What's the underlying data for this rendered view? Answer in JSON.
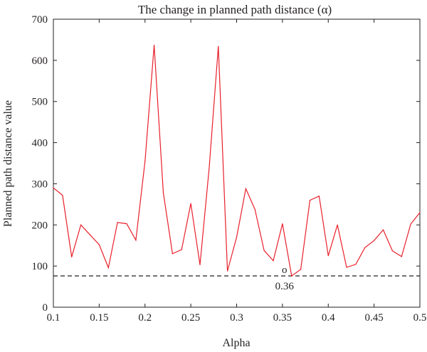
{
  "chart_data": {
    "type": "line",
    "title": "The change in planned path distance (α)",
    "xlabel": "Alpha",
    "ylabel": "Planned path distance value",
    "xlim": [
      0.1,
      0.5
    ],
    "ylim": [
      0,
      700
    ],
    "x_ticks": [
      "0.1",
      "0.15",
      "0.2",
      "0.25",
      "0.3",
      "0.35",
      "0.4",
      "0.45",
      "0.5"
    ],
    "y_ticks": [
      "0",
      "100",
      "200",
      "300",
      "400",
      "500",
      "600",
      "700"
    ],
    "grid": false,
    "series": [
      {
        "color": "#e8202a",
        "x": [
          0.1,
          0.11,
          0.12,
          0.13,
          0.14,
          0.15,
          0.16,
          0.17,
          0.18,
          0.19,
          0.2,
          0.21,
          0.22,
          0.23,
          0.24,
          0.25,
          0.26,
          0.27,
          0.28,
          0.29,
          0.3,
          0.31,
          0.32,
          0.33,
          0.34,
          0.35,
          0.36,
          0.37,
          0.38,
          0.39,
          0.4,
          0.41,
          0.42,
          0.43,
          0.44,
          0.45,
          0.46,
          0.47,
          0.48,
          0.49,
          0.5
        ],
        "y": [
          290,
          272,
          122,
          200,
          176,
          152,
          96,
          206,
          203,
          163,
          355,
          637,
          278,
          130,
          140,
          252,
          103,
          338,
          634,
          88,
          170,
          288,
          238,
          138,
          113,
          203,
          76,
          92,
          260,
          270,
          125,
          200,
          97,
          104,
          145,
          162,
          188,
          137,
          123,
          202,
          230
        ]
      }
    ],
    "reference_line": {
      "y": 76,
      "style": "dashed",
      "color": "#231f20"
    },
    "annotation": {
      "marker": "o",
      "x": 0.36,
      "label": "0.36"
    }
  }
}
